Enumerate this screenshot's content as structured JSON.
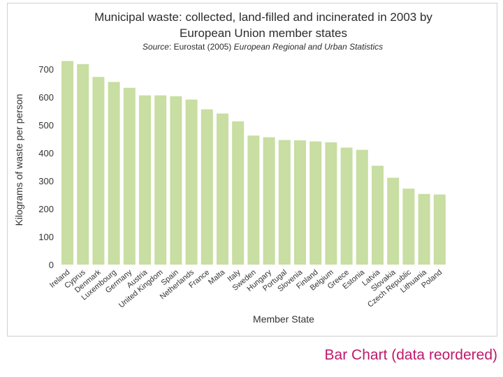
{
  "slide": {
    "footer_label": "Bar Chart (data reordered)",
    "accent_color": "#c0186a"
  },
  "chart_data": {
    "type": "bar",
    "title_line1": "Municipal waste: collected, land-filled and incinerated in 2003 by",
    "title_line2": "European Union member states",
    "source_prefix": "Source",
    "source_middle": ": Eurostat (2005) ",
    "source_publication": "European Regional and Urban Statistics",
    "xlabel": "Member State",
    "ylabel": "Kilograms of waste per person",
    "ylim": [
      0,
      750
    ],
    "yticks": [
      0,
      100,
      200,
      300,
      400,
      500,
      600,
      700
    ],
    "grid": false,
    "bar_color": "#c8dea2",
    "categories": [
      "Ireland",
      "Cyprus",
      "Denmark",
      "Luxembourg",
      "Germany",
      "Austria",
      "United Kingdom",
      "Spain",
      "Netherlands",
      "France",
      "Malta",
      "Italy",
      "Sweden",
      "Hungary",
      "Portugal",
      "Slovenia",
      "Finland",
      "Belgium",
      "Greece",
      "Estonia",
      "Latvia",
      "Slovakia",
      "Czech Republic",
      "Lithuania",
      "Poland"
    ],
    "values": [
      729,
      718,
      672,
      654,
      633,
      606,
      606,
      603,
      591,
      556,
      541,
      513,
      462,
      456,
      446,
      445,
      441,
      438,
      419,
      411,
      354,
      311,
      272,
      253,
      251
    ]
  }
}
